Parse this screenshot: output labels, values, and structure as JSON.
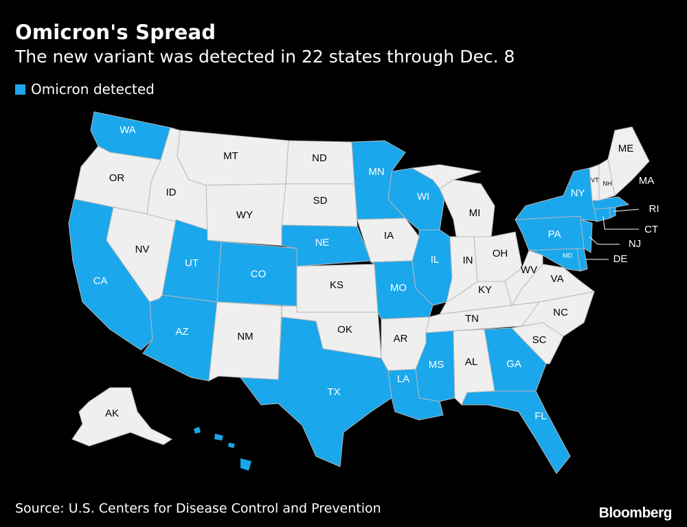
{
  "header": {
    "title": "Omicron's Spread",
    "subtitle": "The new variant was detected in 22 states through Dec. 8"
  },
  "legend": {
    "label": "Omicron detected",
    "color": "#1aa7ec"
  },
  "colors": {
    "detected": "#1aa7ec",
    "not_detected": "#efefef",
    "background": "#000000",
    "label_on_detected": "#ffffff",
    "label_on_other": "#000000"
  },
  "states": {
    "WA": "WA",
    "OR": "OR",
    "CA": "CA",
    "NV": "NV",
    "ID": "ID",
    "MT": "MT",
    "WY": "WY",
    "UT": "UT",
    "CO": "CO",
    "AZ": "AZ",
    "NM": "NM",
    "ND": "ND",
    "SD": "SD",
    "NE": "NE",
    "KS": "KS",
    "OK": "OK",
    "TX": "TX",
    "MN": "MN",
    "IA": "IA",
    "MO": "MO",
    "AR": "AR",
    "LA": "LA",
    "WI": "WI",
    "IL": "IL",
    "MI": "MI",
    "IN": "IN",
    "OH": "OH",
    "KY": "KY",
    "TN": "TN",
    "MS": "MS",
    "AL": "AL",
    "GA": "GA",
    "FL": "FL",
    "SC": "SC",
    "NC": "NC",
    "VA": "VA",
    "WV": "WV",
    "MD": "MD",
    "DE": "DE",
    "NJ": "NJ",
    "PA": "PA",
    "NY": "NY",
    "CT": "CT",
    "RI": "RI",
    "MA": "MA",
    "VT": "VT",
    "NH": "NH",
    "ME": "ME",
    "AK": "AK"
  },
  "footer": {
    "source": "Source: U.S. Centers for Disease Control and Prevention",
    "brand": "Bloomberg"
  }
}
